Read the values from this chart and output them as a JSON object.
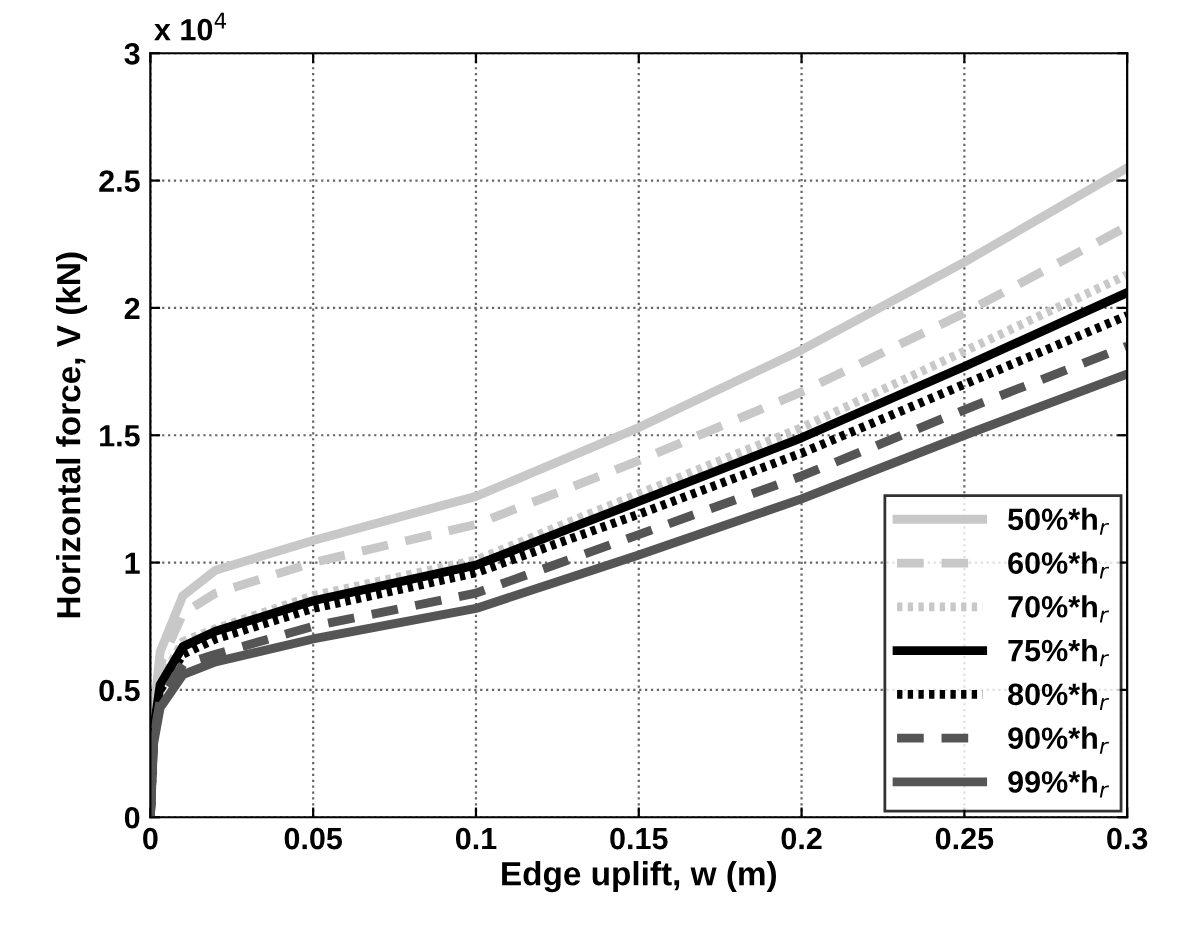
{
  "chart_data": {
    "type": "line",
    "xlabel": "Edge uplift, w (m)",
    "ylabel": "Horizontal force, V (kN)",
    "annotations": [
      "x 10$^{4}$"
    ],
    "x": [
      0,
      0.001,
      0.003,
      0.01,
      0.02,
      0.05,
      0.1,
      0.15,
      0.2,
      0.25,
      0.3
    ],
    "series": [
      {
        "name": "50%*h$_{r}$",
        "color": "#c8c8c8",
        "line_style": "solid",
        "values": [
          0,
          0.4,
          0.65,
          0.87,
          0.97,
          1.087,
          1.26,
          1.53,
          1.835,
          2.18,
          2.55
        ]
      },
      {
        "name": "60%*h$_{r}$",
        "color": "#c8c8c8",
        "line_style": "dashed",
        "values": [
          0,
          0.38,
          0.6,
          0.8,
          0.88,
          1.0,
          1.15,
          1.4,
          1.67,
          1.98,
          2.32
        ]
      },
      {
        "name": "70%*h$_{r}$",
        "color": "#c8c8c8",
        "line_style": "dotted",
        "values": [
          0,
          0.35,
          0.53,
          0.69,
          0.74,
          0.87,
          1.01,
          1.27,
          1.53,
          1.83,
          2.13
        ]
      },
      {
        "name": "75%*h$_{r}$",
        "color": "#000000",
        "line_style": "solid",
        "values": [
          0,
          0.34,
          0.52,
          0.67,
          0.73,
          0.85,
          0.99,
          1.24,
          1.49,
          1.77,
          2.06
        ]
      },
      {
        "name": "80%*h$_{r}$",
        "color": "#000000",
        "line_style": "dotted",
        "values": [
          0,
          0.33,
          0.5,
          0.64,
          0.7,
          0.82,
          0.96,
          1.19,
          1.43,
          1.7,
          1.97
        ]
      },
      {
        "name": "90%*h$_{r}$",
        "color": "#555555",
        "line_style": "dashed",
        "values": [
          0,
          0.31,
          0.46,
          0.6,
          0.64,
          0.75,
          0.88,
          1.11,
          1.34,
          1.6,
          1.85
        ]
      },
      {
        "name": "99%*h$_{r}$",
        "color": "#555555",
        "line_style": "solid",
        "values": [
          0,
          0.29,
          0.43,
          0.56,
          0.61,
          0.7,
          0.82,
          1.03,
          1.25,
          1.5,
          1.74
        ]
      }
    ],
    "xlim": [
      0,
      0.3
    ],
    "xticks": [
      0,
      0.05,
      0.1,
      0.15,
      0.2,
      0.25,
      0.3
    ],
    "ylim": [
      0,
      3
    ],
    "yticks": [
      0,
      0.5,
      1,
      1.5,
      2,
      2.5,
      3
    ],
    "grid": true,
    "legend": "bottom right",
    "marker": "none"
  }
}
